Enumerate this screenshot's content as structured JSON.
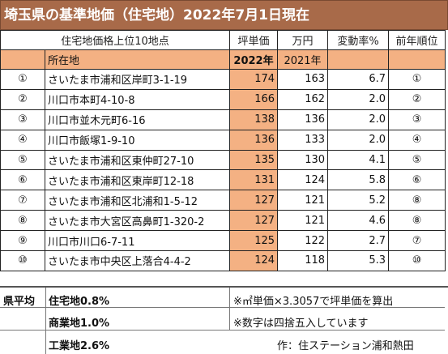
{
  "title": "埼玉県の基準地価（住宅地）2022年7月1日現在",
  "header": {
    "ranking_label": "住宅地価格上位10地点",
    "tsubo_price": "坪単価",
    "unit": "万円",
    "change_rate": "変動率%",
    "prev_rank": "前年順位",
    "location": "所在地",
    "year_current": "2022年",
    "year_prev": "2021年"
  },
  "rows": [
    {
      "rank": "①",
      "address": "さいたま市浦和区岸町3-1-19",
      "price_2022": "174",
      "price_2021": "163",
      "change": "6.7",
      "prev_rank": "①"
    },
    {
      "rank": "②",
      "address": "川口市本町4-10-8",
      "price_2022": "166",
      "price_2021": "162",
      "change": "2.0",
      "prev_rank": "②"
    },
    {
      "rank": "③",
      "address": "川口市並木元町6-16",
      "price_2022": "138",
      "price_2021": "136",
      "change": "2.0",
      "prev_rank": "③"
    },
    {
      "rank": "④",
      "address": "川口市飯塚1-9-10",
      "price_2022": "136",
      "price_2021": "133",
      "change": "2.0",
      "prev_rank": "④"
    },
    {
      "rank": "⑤",
      "address": "さいたま市浦和区東仲町27-10",
      "price_2022": "135",
      "price_2021": "130",
      "change": "4.1",
      "prev_rank": "⑤"
    },
    {
      "rank": "⑥",
      "address": "さいたま市浦和区東岸町12-18",
      "price_2022": "131",
      "price_2021": "124",
      "change": "5.8",
      "prev_rank": "⑥"
    },
    {
      "rank": "⑦",
      "address": "さいたま市浦和区北浦和1-5-12",
      "price_2022": "127",
      "price_2021": "121",
      "change": "5.2",
      "prev_rank": "⑧"
    },
    {
      "rank": "⑧",
      "address": "さいたま市大宮区高鼻町1-320-2",
      "price_2022": "127",
      "price_2021": "121",
      "change": "4.6",
      "prev_rank": "⑧"
    },
    {
      "rank": "⑨",
      "address": "川口市川口6-7-11",
      "price_2022": "125",
      "price_2021": "122",
      "change": "2.7",
      "prev_rank": "⑦"
    },
    {
      "rank": "⑩",
      "address": "さいたま市中央区上落合4-4-2",
      "price_2022": "124",
      "price_2021": "118",
      "change": "5.3",
      "prev_rank": "⑩"
    }
  ],
  "footer": {
    "pref_avg_label": "県平均",
    "residential": "住宅地0.8%",
    "commercial": "商業地1.0%",
    "industrial": "工業地2.6%",
    "note1": "※㎡単価×3.3057で坪単価を算出",
    "note2": "※数字は四捨五入しています",
    "author": "作：住ステーション浦和熱田"
  },
  "colors": {
    "title_bg": "#a86a49",
    "highlight": "#f4b183"
  }
}
